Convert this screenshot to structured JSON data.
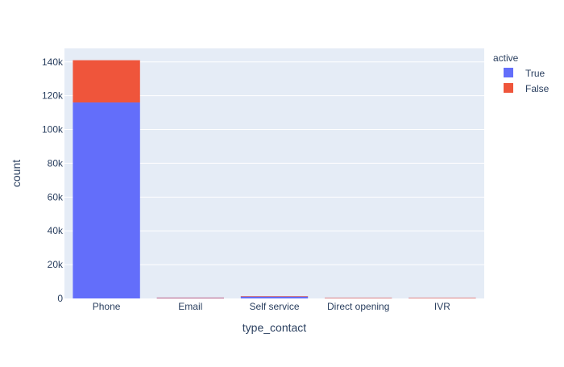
{
  "chart_data": {
    "type": "bar",
    "barmode": "stack",
    "categories": [
      "Phone",
      "Email",
      "Self service",
      "Direct opening",
      "IVR"
    ],
    "series": [
      {
        "name": "True",
        "color": "#636efa",
        "values": [
          116000,
          200,
          1100,
          30,
          10
        ]
      },
      {
        "name": "False",
        "color": "#ef553b",
        "values": [
          25000,
          50,
          100,
          10,
          5
        ]
      }
    ],
    "xlabel": "type_contact",
    "ylabel": "count",
    "ylim": [
      0,
      148000
    ],
    "yticks": [
      0,
      20000,
      40000,
      60000,
      80000,
      100000,
      120000,
      140000
    ],
    "ytick_labels": [
      "0",
      "20k",
      "40k",
      "60k",
      "80k",
      "100k",
      "120k",
      "140k"
    ],
    "legend_title": "active",
    "legend_position": "top-right",
    "plot_background": "#e5ecf6",
    "grid": true
  }
}
